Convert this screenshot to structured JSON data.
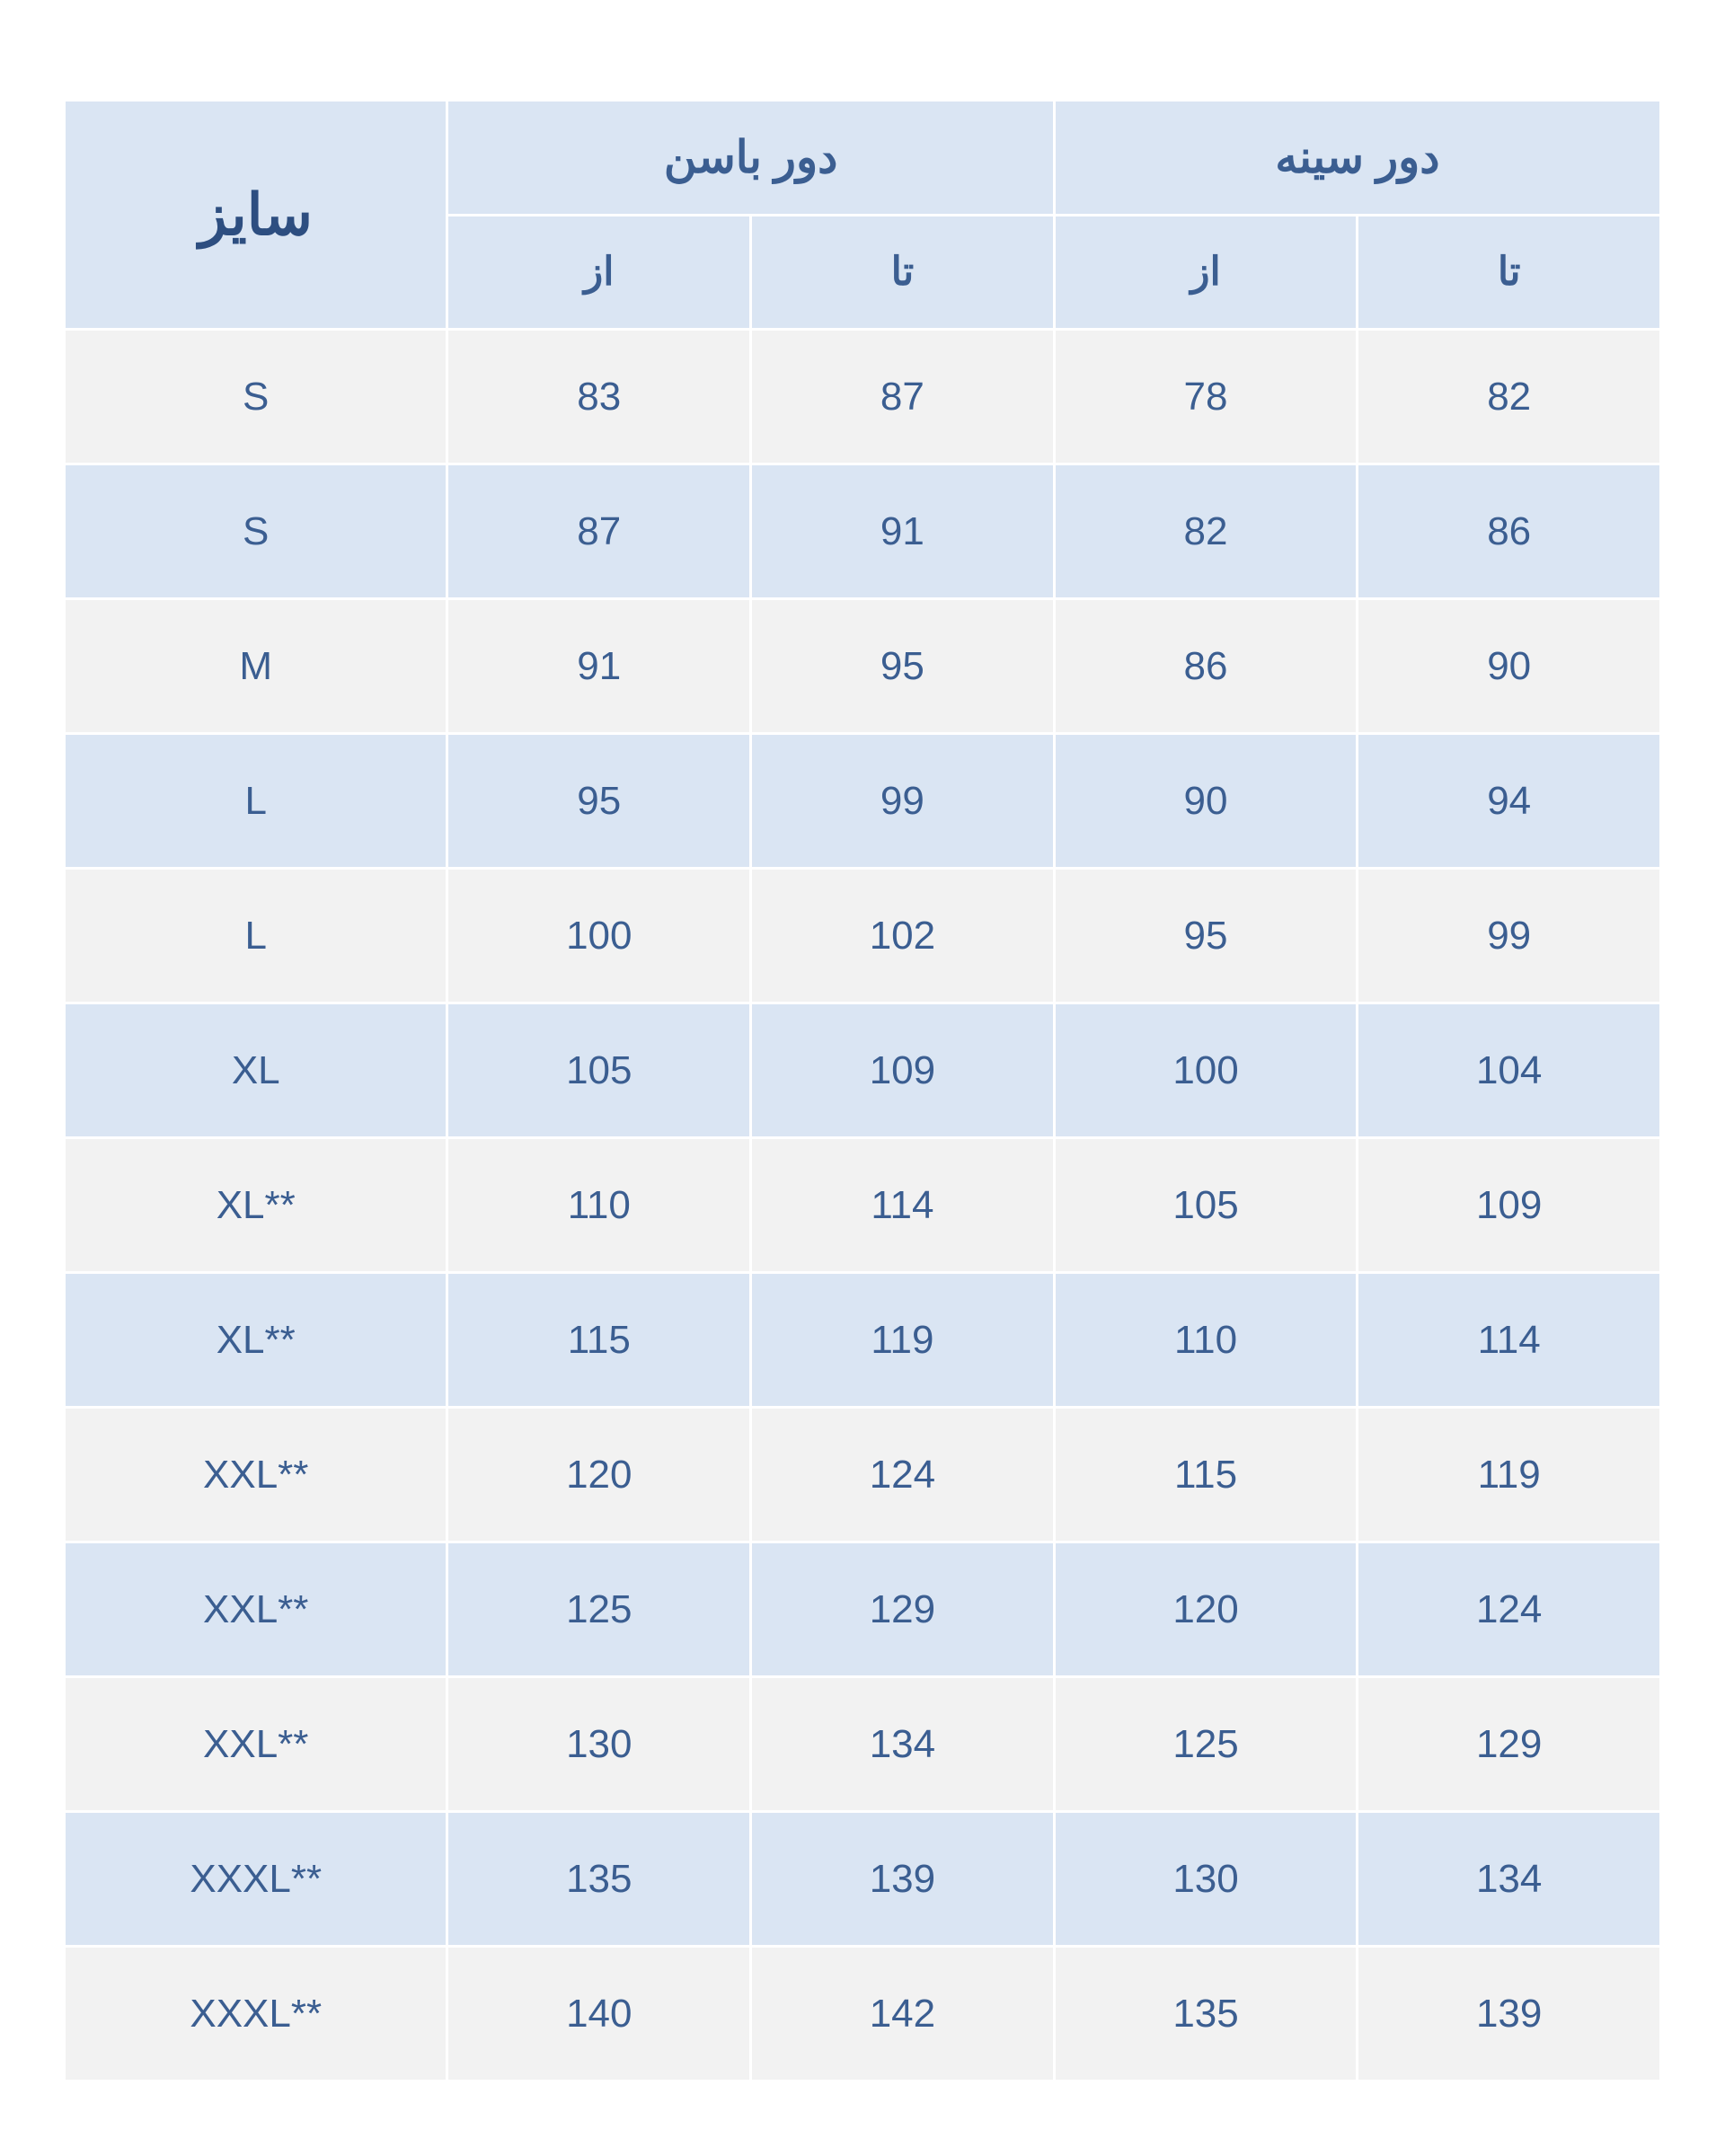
{
  "table": {
    "type": "table",
    "colors": {
      "header_bg": "#dae5f3",
      "row_even_bg": "#f2f2f2",
      "row_odd_bg": "#dae5f3",
      "border_color": "#ffffff",
      "header_text_color": "#3b5e91",
      "header_bold_text_color": "#2d4e80",
      "cell_text_color": "#3b5e91",
      "size_label_color": "#3b5e91"
    },
    "fonts": {
      "header_size_pt": 48,
      "header_group_pt": 38,
      "header_sub_pt": 34,
      "cell_pt": 34
    },
    "header": {
      "size_label": "سایز",
      "group1": "دور باسن",
      "group2": "دور سینه",
      "sub_from": "از",
      "sub_to": "تا"
    },
    "columns": [
      "size",
      "hip_from",
      "hip_to",
      "chest_from",
      "chest_to"
    ],
    "rows": [
      {
        "size": "S",
        "hip_from": "83",
        "hip_to": "87",
        "chest_from": "78",
        "chest_to": "82"
      },
      {
        "size": "S",
        "hip_from": "87",
        "hip_to": "91",
        "chest_from": "82",
        "chest_to": "86"
      },
      {
        "size": "M",
        "hip_from": "91",
        "hip_to": "95",
        "chest_from": "86",
        "chest_to": "90"
      },
      {
        "size": "L",
        "hip_from": "95",
        "hip_to": "99",
        "chest_from": "90",
        "chest_to": "94"
      },
      {
        "size": "L",
        "hip_from": "100",
        "hip_to": "102",
        "chest_from": "95",
        "chest_to": "99"
      },
      {
        "size": "XL",
        "hip_from": "105",
        "hip_to": "109",
        "chest_from": "100",
        "chest_to": "104"
      },
      {
        "size": "XL**",
        "hip_from": "110",
        "hip_to": "114",
        "chest_from": "105",
        "chest_to": "109"
      },
      {
        "size": "XL**",
        "hip_from": "115",
        "hip_to": "119",
        "chest_from": "110",
        "chest_to": "114"
      },
      {
        "size": "XXL**",
        "hip_from": "120",
        "hip_to": "124",
        "chest_from": "115",
        "chest_to": "119"
      },
      {
        "size": "XXL**",
        "hip_from": "125",
        "hip_to": "129",
        "chest_from": "120",
        "chest_to": "124"
      },
      {
        "size": "XXL**",
        "hip_from": "130",
        "hip_to": "134",
        "chest_from": "125",
        "chest_to": "129"
      },
      {
        "size": "XXXL**",
        "hip_from": "135",
        "hip_to": "139",
        "chest_from": "130",
        "chest_to": "134"
      },
      {
        "size": "XXXL**",
        "hip_from": "140",
        "hip_to": "142",
        "chest_from": "135",
        "chest_to": "139"
      }
    ]
  }
}
